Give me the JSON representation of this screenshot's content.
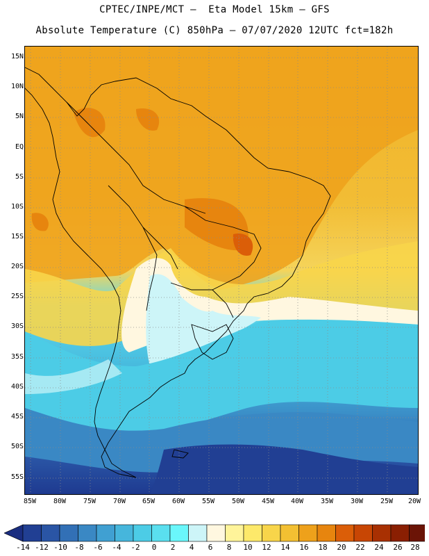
{
  "header": {
    "title_line1": "CPTEC/INPE/MCT –  Eta Model 15km – GFS",
    "title_line2": "Absolute Temperature (C) 850hPa – 07/07/2020 12UTC fct=182h"
  },
  "map": {
    "lat_labels": [
      "15N",
      "10N",
      "5N",
      "EQ",
      "5S",
      "10S",
      "15S",
      "20S",
      "25S",
      "30S",
      "35S",
      "40S",
      "45S",
      "50S",
      "55S"
    ],
    "lon_labels": [
      "85W",
      "80W",
      "75W",
      "70W",
      "65W",
      "60W",
      "55W",
      "50W",
      "45W",
      "40W",
      "35W",
      "30W",
      "25W",
      "20W"
    ],
    "grid_line_color": "#8a8a8a",
    "coastline_color": "#000000"
  },
  "legend": {
    "tick_labels": [
      "-14",
      "-12",
      "-10",
      "-8",
      "-6",
      "-4",
      "-2",
      "0",
      "2",
      "4",
      "6",
      "8",
      "10",
      "12",
      "14",
      "16",
      "18",
      "20",
      "22",
      "24",
      "26",
      "28"
    ],
    "colors": [
      "#1a2d80",
      "#213f93",
      "#2a55a5",
      "#3270b6",
      "#3a88c4",
      "#40a0d2",
      "#46b6dc",
      "#4ccce6",
      "#5adfef",
      "#6af7fb",
      "#cdf5f8",
      "#fff7e0",
      "#fff49a",
      "#fde96a",
      "#f8d54a",
      "#f3c032",
      "#eea11b",
      "#e7850e",
      "#db5e08",
      "#c84604",
      "#a83002",
      "#8a1f02",
      "#6b1406",
      "#7a0020"
    ]
  }
}
